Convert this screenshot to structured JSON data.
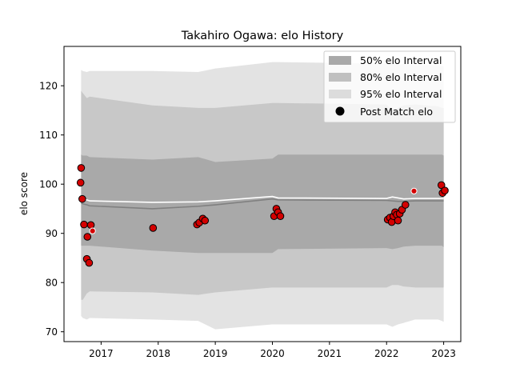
{
  "chart_data": {
    "type": "line",
    "title": "Takahiro Ogawa: elo History",
    "xlabel": "",
    "ylabel": "elo score",
    "xlim": [
      2016.35,
      2023.3
    ],
    "ylim": [
      68,
      128
    ],
    "x_ticks": [
      2017,
      2018,
      2019,
      2020,
      2021,
      2022,
      2023
    ],
    "x_tick_labels": [
      "2017",
      "2018",
      "2019",
      "2020",
      "2021",
      "2022",
      "2023"
    ],
    "y_ticks": [
      70,
      80,
      90,
      100,
      110,
      120
    ],
    "y_tick_labels": [
      "70",
      "80",
      "90",
      "100",
      "110",
      "120"
    ],
    "grid": false,
    "legend_position": "top-right",
    "legend": [
      {
        "label": "50% elo Interval",
        "kind": "band",
        "color": "#a9a9a9"
      },
      {
        "label": "80% elo Interval",
        "kind": "band",
        "color": "#c0c0c0"
      },
      {
        "label": "95% elo Interval",
        "kind": "band",
        "color": "#dcdcdc"
      },
      {
        "label": "Post Match elo",
        "kind": "marker",
        "color": "#000000"
      }
    ],
    "colors": {
      "band50": "#a9a9a9",
      "band80": "#c8c8c8",
      "band95": "#e3e3e3",
      "mean_line": "#ffffff",
      "median_line": "#808080",
      "marker_fill": "#d40000",
      "marker_edge": "#000000"
    },
    "x": [
      2016.65,
      2016.68,
      2016.75,
      2016.8,
      2017.9,
      2018.7,
      2019.0,
      2020.0,
      2020.1,
      2022.0,
      2022.1,
      2022.2,
      2022.3,
      2022.5,
      2022.9,
      2022.97,
      2023.0
    ],
    "band95": {
      "upper": [
        123.2,
        123.0,
        122.8,
        123.0,
        123.0,
        122.8,
        123.5,
        124.8,
        124.8,
        124.5,
        124.5,
        124.2,
        124.5,
        124.2,
        124.2,
        124.0,
        124.0
      ],
      "lower": [
        73.2,
        72.8,
        72.5,
        72.8,
        72.5,
        72.2,
        70.5,
        71.5,
        71.5,
        71.5,
        71.0,
        71.5,
        71.8,
        72.5,
        72.5,
        72.2,
        72.0
      ]
    },
    "band80": {
      "upper": [
        119.0,
        118.5,
        117.5,
        117.8,
        116.0,
        115.5,
        115.5,
        116.5,
        116.5,
        116.2,
        115.0,
        115.5,
        116.0,
        116.2,
        115.8,
        115.5,
        115.5
      ],
      "lower": [
        76.5,
        76.5,
        77.8,
        78.2,
        78.0,
        77.5,
        78.0,
        79.0,
        79.0,
        79.0,
        79.5,
        79.5,
        79.2,
        79.0,
        79.0,
        79.0,
        79.0
      ]
    },
    "band50": {
      "upper": [
        106.0,
        105.8,
        105.8,
        105.5,
        105.0,
        105.5,
        104.5,
        105.2,
        106.0,
        106.0,
        106.0,
        106.0,
        106.0,
        106.0,
        106.0,
        106.0,
        105.8
      ],
      "lower": [
        87.5,
        87.5,
        87.5,
        87.5,
        86.5,
        86.0,
        86.0,
        86.0,
        86.8,
        87.0,
        86.8,
        87.0,
        87.3,
        87.5,
        87.5,
        87.5,
        87.2
      ]
    },
    "mean": [
      97.0,
      96.9,
      96.8,
      96.6,
      96.3,
      96.4,
      96.6,
      97.5,
      97.2,
      97.1,
      97.4,
      97.2,
      97.0,
      97.1,
      97.1,
      97.1,
      97.1
    ],
    "median": [
      96.2,
      96.0,
      95.8,
      95.6,
      95.0,
      95.5,
      95.8,
      97.0,
      96.8,
      96.7,
      96.6,
      96.5,
      96.5,
      96.6,
      96.6,
      96.6,
      96.6
    ],
    "post_match": {
      "x": [
        2016.64,
        2016.65,
        2016.67,
        2016.7,
        2016.75,
        2016.76,
        2016.79,
        2016.82,
        2016.85,
        2017.91,
        2018.68,
        2018.72,
        2018.78,
        2018.82,
        2020.03,
        2020.07,
        2020.1,
        2020.14,
        2022.02,
        2022.06,
        2022.09,
        2022.12,
        2022.15,
        2022.18,
        2022.2,
        2022.23,
        2022.27,
        2022.33,
        2022.48,
        2022.96,
        2022.98,
        2023.02
      ],
      "y": [
        100.3,
        103.3,
        97.0,
        91.8,
        84.8,
        89.3,
        84.0,
        91.7,
        90.5,
        91.1,
        91.8,
        92.2,
        93.0,
        92.6,
        93.5,
        95.0,
        94.3,
        93.5,
        92.8,
        93.2,
        92.3,
        93.5,
        94.3,
        93.8,
        92.6,
        94.0,
        94.8,
        95.8,
        98.6,
        99.8,
        98.2,
        98.7
      ],
      "small": [
        false,
        false,
        false,
        false,
        false,
        false,
        false,
        false,
        true,
        false,
        false,
        false,
        false,
        false,
        false,
        false,
        false,
        false,
        false,
        false,
        false,
        false,
        false,
        false,
        false,
        false,
        false,
        false,
        true,
        false,
        false,
        false
      ]
    }
  }
}
